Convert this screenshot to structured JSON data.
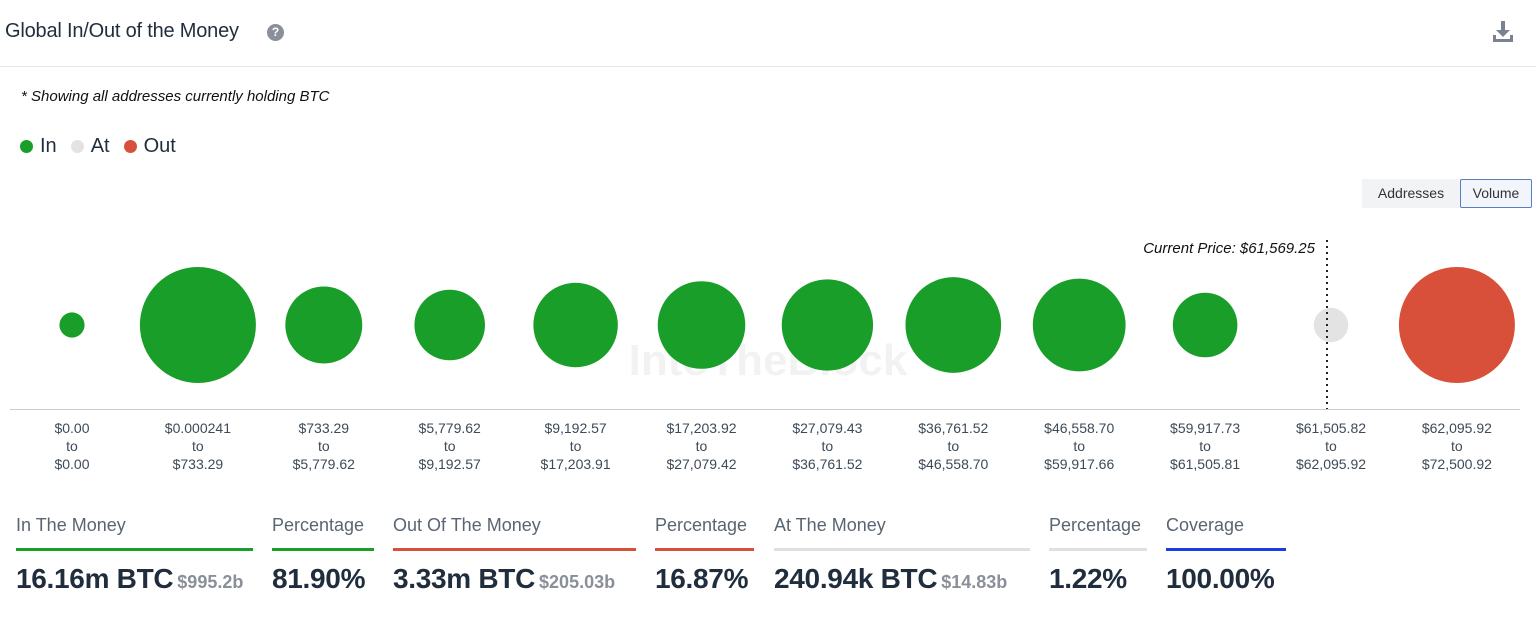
{
  "header": {
    "title": "Global In/Out of the Money",
    "help_icon": "question-circle-icon",
    "download_icon": "download-icon"
  },
  "note": "* Showing all addresses currently holding BTC",
  "legend": [
    {
      "label": "In",
      "color": "#1a9e2a"
    },
    {
      "label": "At",
      "color": "#e3e3e3"
    },
    {
      "label": "Out",
      "color": "#d9503a"
    }
  ],
  "toggle": {
    "addresses": "Addresses",
    "volume": "Volume",
    "selected": "Volume"
  },
  "watermark": "IntoTheBlock",
  "chart_data": {
    "type": "scatter",
    "title": "Global In/Out of the Money",
    "current_price_label": "Current Price: $61,569.25",
    "current_price": 61569.25,
    "categories": [
      {
        "from": "$0.00",
        "to": "$0.00",
        "status": "in",
        "relative_volume": 0.047
      },
      {
        "from": "$0.000241",
        "to": "$733.29",
        "status": "in",
        "relative_volume": 1.0
      },
      {
        "from": "$733.29",
        "to": "$5,779.62",
        "status": "in",
        "relative_volume": 0.44
      },
      {
        "from": "$5,779.62",
        "to": "$9,192.57",
        "status": "in",
        "relative_volume": 0.37
      },
      {
        "from": "$9,192.57",
        "to": "$17,203.91",
        "status": "in",
        "relative_volume": 0.53
      },
      {
        "from": "$17,203.92",
        "to": "$27,079.42",
        "status": "in",
        "relative_volume": 0.57
      },
      {
        "from": "$27,079.43",
        "to": "$36,761.52",
        "status": "in",
        "relative_volume": 0.62
      },
      {
        "from": "$36,761.52",
        "to": "$46,558.70",
        "status": "in",
        "relative_volume": 0.68
      },
      {
        "from": "$46,558.70",
        "to": "$59,917.66",
        "status": "in",
        "relative_volume": 0.64
      },
      {
        "from": "$59,917.73",
        "to": "$61,505.81",
        "status": "in",
        "relative_volume": 0.31
      },
      {
        "from": "$61,505.82",
        "to": "$62,095.92",
        "status": "at",
        "relative_volume": 0.088
      },
      {
        "from": "$62,095.92",
        "to": "$72,500.92",
        "status": "out",
        "relative_volume": 1.0
      }
    ],
    "range_word": "to",
    "colors": {
      "in": "#1a9e2a",
      "at": "#e3e3e3",
      "out": "#d9503a"
    }
  },
  "stats": [
    {
      "label": "In The Money",
      "value": "16.16m BTC",
      "sub": "$995.2b",
      "color": "#1a9e2a"
    },
    {
      "label": "Percentage",
      "value": "81.90%",
      "sub": "",
      "color": "#1a9e2a"
    },
    {
      "label": "Out Of The Money",
      "value": "3.33m BTC",
      "sub": "$205.03b",
      "color": "#d9503a"
    },
    {
      "label": "Percentage",
      "value": "16.87%",
      "sub": "",
      "color": "#d9503a"
    },
    {
      "label": "At The Money",
      "value": "240.94k BTC",
      "sub": "$14.83b",
      "color": "#e0e0e0"
    },
    {
      "label": "Percentage",
      "value": "1.22%",
      "sub": "",
      "color": "#e0e0e0"
    },
    {
      "label": "Coverage",
      "value": "100.00%",
      "sub": "",
      "color": "#1a3fe0"
    }
  ]
}
